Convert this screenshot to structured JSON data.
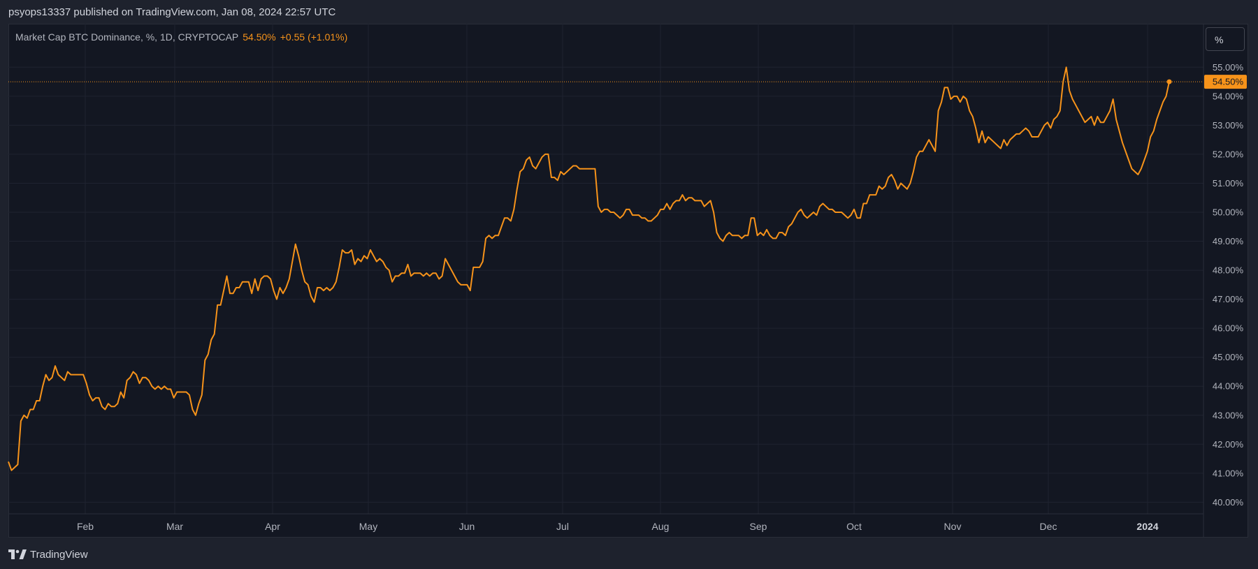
{
  "header": {
    "publish_line": "psyops13337 published on TradingView.com, Jan 08, 2024 22:57 UTC"
  },
  "legend": {
    "symbol_text": "Market Cap BTC Dominance, %, 1D, CRYPTOCAP",
    "last_value": "54.50%",
    "change": "+0.55 (+1.01%)"
  },
  "toolbar": {
    "unit_label": "%"
  },
  "footer": {
    "brand_name": "TradingView"
  },
  "colors": {
    "background": "#131722",
    "line": "#f7931a",
    "grid": "#1f2330",
    "text": "#b2b5be"
  },
  "chart_data": {
    "type": "line",
    "title": "Market Cap BTC Dominance, %, 1D, CRYPTOCAP",
    "xlabel": "",
    "ylabel": "",
    "unit": "%",
    "ylim": [
      39.6,
      56.5
    ],
    "grid": true,
    "legend_placement": "top-left",
    "last_value_label": "54.50%",
    "x_tick_labels": [
      "Feb",
      "Mar",
      "Apr",
      "May",
      "Jun",
      "Jul",
      "Aug",
      "Sep",
      "Oct",
      "Nov",
      "Dec",
      "2024"
    ],
    "y_tick_labels": [
      "40.00%",
      "41.00%",
      "42.00%",
      "43.00%",
      "44.00%",
      "45.00%",
      "46.00%",
      "47.00%",
      "48.00%",
      "49.00%",
      "50.00%",
      "51.00%",
      "52.00%",
      "53.00%",
      "54.00%",
      "55.00%"
    ],
    "series": [
      {
        "values": [
          41.4,
          41.1,
          41.2,
          41.3,
          42.8,
          43.0,
          42.9,
          43.2,
          43.2,
          43.5,
          43.5,
          44.0,
          44.4,
          44.2,
          44.3,
          44.7,
          44.4,
          44.3,
          44.2,
          44.5,
          44.4,
          44.4,
          44.4,
          44.4,
          44.4,
          44.1,
          43.7,
          43.5,
          43.6,
          43.6,
          43.3,
          43.2,
          43.4,
          43.3,
          43.3,
          43.4,
          43.8,
          43.6,
          44.2,
          44.3,
          44.5,
          44.4,
          44.1,
          44.3,
          44.3,
          44.2,
          44.0,
          43.9,
          44.0,
          43.9,
          44.0,
          43.9,
          43.9,
          43.6,
          43.8,
          43.8,
          43.8,
          43.8,
          43.7,
          43.2,
          43.0,
          43.4,
          43.7,
          44.9,
          45.1,
          45.6,
          45.8,
          46.8,
          46.8,
          47.3,
          47.8,
          47.2,
          47.2,
          47.4,
          47.4,
          47.6,
          47.6,
          47.6,
          47.2,
          47.7,
          47.3,
          47.7,
          47.8,
          47.8,
          47.7,
          47.3,
          47.0,
          47.4,
          47.2,
          47.4,
          47.7,
          48.3,
          48.9,
          48.5,
          48.0,
          47.6,
          47.5,
          47.1,
          46.9,
          47.4,
          47.4,
          47.3,
          47.4,
          47.3,
          47.4,
          47.6,
          48.1,
          48.7,
          48.6,
          48.6,
          48.7,
          48.2,
          48.4,
          48.3,
          48.5,
          48.4,
          48.7,
          48.5,
          48.3,
          48.4,
          48.3,
          48.1,
          48.0,
          47.6,
          47.8,
          47.8,
          47.9,
          47.9,
          48.2,
          47.8,
          47.9,
          47.9,
          47.9,
          47.8,
          47.9,
          47.8,
          47.9,
          47.9,
          47.7,
          47.8,
          48.4,
          48.2,
          48.0,
          47.8,
          47.6,
          47.5,
          47.5,
          47.5,
          47.3,
          48.1,
          48.1,
          48.1,
          48.3,
          49.1,
          49.2,
          49.1,
          49.2,
          49.2,
          49.5,
          49.8,
          49.8,
          49.7,
          50.1,
          50.8,
          51.4,
          51.5,
          51.8,
          51.9,
          51.6,
          51.5,
          51.7,
          51.9,
          52.0,
          52.0,
          51.2,
          51.2,
          51.1,
          51.4,
          51.3,
          51.4,
          51.5,
          51.6,
          51.6,
          51.5,
          51.5,
          51.5,
          51.5,
          51.5,
          51.5,
          50.2,
          50.0,
          50.1,
          50.1,
          50.0,
          50.0,
          49.9,
          49.8,
          49.9,
          50.1,
          50.1,
          49.9,
          49.9,
          49.9,
          49.8,
          49.8,
          49.7,
          49.7,
          49.8,
          49.9,
          50.1,
          50.1,
          50.3,
          50.1,
          50.3,
          50.4,
          50.4,
          50.6,
          50.4,
          50.5,
          50.5,
          50.4,
          50.4,
          50.4,
          50.2,
          50.3,
          50.4,
          50.0,
          49.3,
          49.1,
          49.0,
          49.2,
          49.3,
          49.2,
          49.2,
          49.2,
          49.1,
          49.2,
          49.2,
          49.8,
          49.8,
          49.2,
          49.3,
          49.2,
          49.4,
          49.2,
          49.1,
          49.1,
          49.3,
          49.3,
          49.2,
          49.5,
          49.6,
          49.8,
          50.0,
          50.1,
          49.9,
          49.8,
          49.9,
          50.0,
          49.9,
          50.2,
          50.3,
          50.2,
          50.1,
          50.1,
          50.0,
          50.0,
          50.0,
          49.9,
          49.8,
          49.9,
          50.1,
          49.8,
          49.8,
          50.3,
          50.3,
          50.6,
          50.6,
          50.6,
          50.9,
          50.8,
          50.9,
          51.2,
          51.3,
          51.1,
          50.8,
          51.0,
          50.9,
          50.8,
          51.0,
          51.4,
          51.9,
          52.1,
          52.1,
          52.3,
          52.5,
          52.3,
          52.1,
          53.5,
          53.8,
          54.3,
          54.3,
          53.9,
          54.0,
          54.0,
          53.8,
          54.0,
          53.9,
          53.5,
          53.3,
          52.9,
          52.4,
          52.8,
          52.4,
          52.6,
          52.5,
          52.4,
          52.3,
          52.2,
          52.5,
          52.3,
          52.5,
          52.6,
          52.7,
          52.7,
          52.8,
          52.9,
          52.8,
          52.6,
          52.6,
          52.6,
          52.8,
          53.0,
          53.1,
          52.9,
          53.2,
          53.3,
          53.5,
          54.5,
          55.0,
          54.2,
          53.9,
          53.7,
          53.5,
          53.3,
          53.1,
          53.2,
          53.3,
          53.0,
          53.3,
          53.1,
          53.1,
          53.3,
          53.5,
          53.9,
          53.2,
          52.8,
          52.4,
          52.1,
          51.8,
          51.5,
          51.4,
          51.3,
          51.5,
          51.8,
          52.1,
          52.6,
          52.8,
          53.2,
          53.5,
          53.8,
          54.0,
          54.5
        ]
      }
    ]
  }
}
